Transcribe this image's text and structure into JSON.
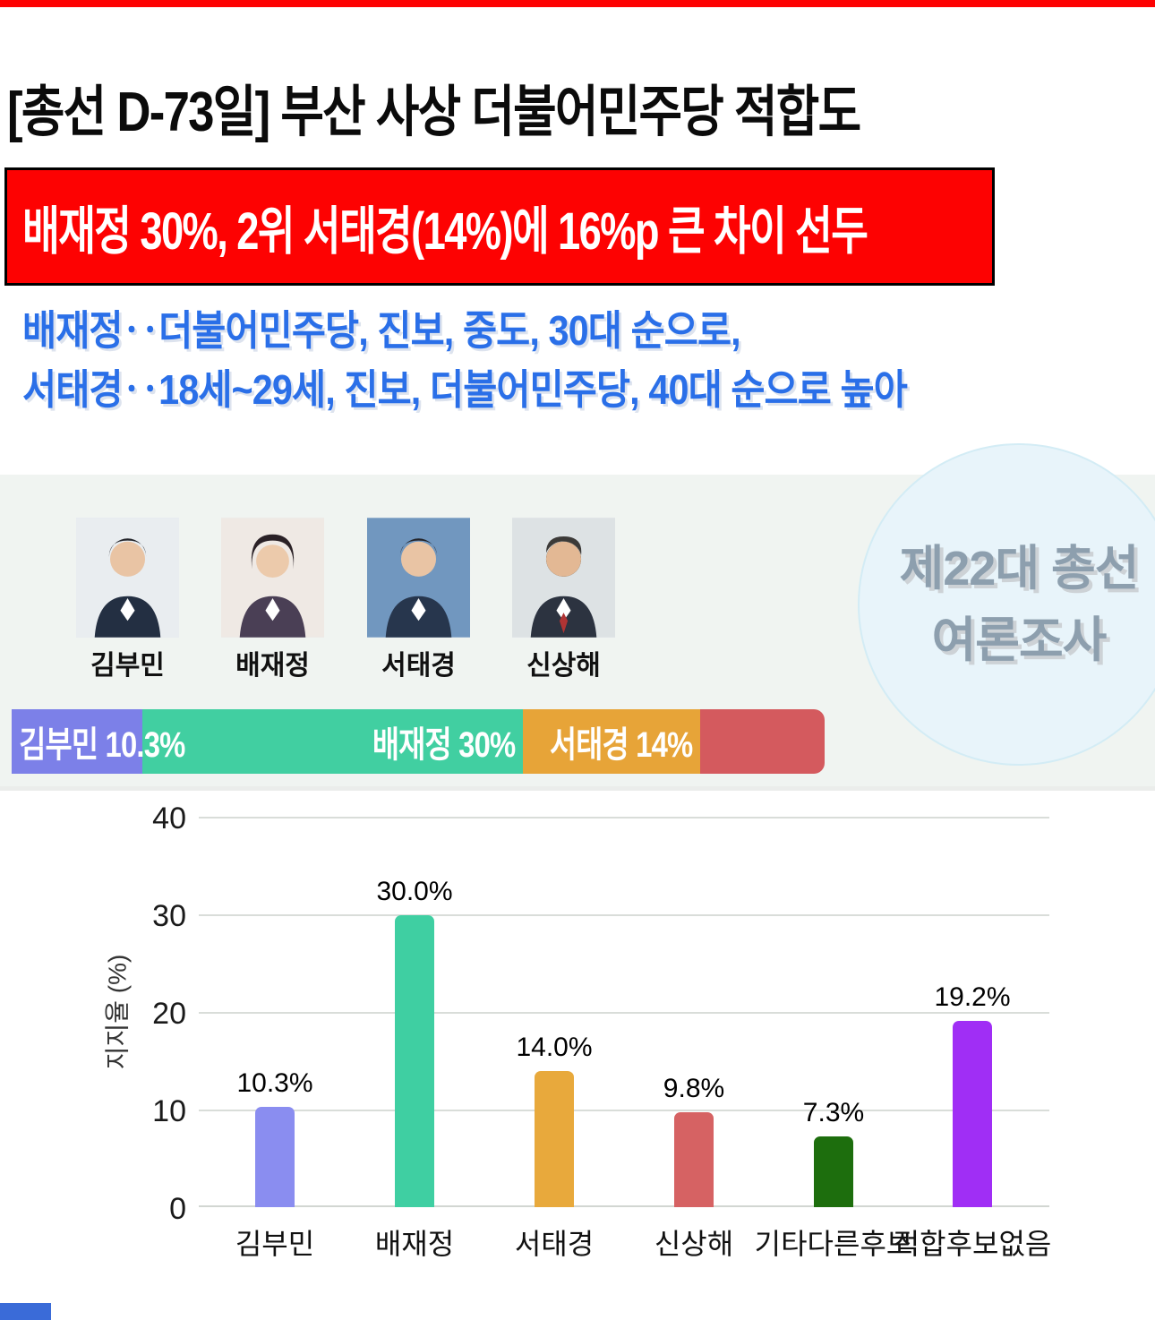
{
  "header": {
    "headline": "[총선 D-73일] 부산 사상 더불어민주당 적합도",
    "banner_text": "배재정 30%, 2위 서태경(14%)에 16%p 큰 차이 선두",
    "subtitle_lines": [
      "배재정‥더불어민주당, 진보, 중도, 30대 순으로,",
      "서태경‥18세~29세, 진보, 더불어민주당, 40대 순으로 높아"
    ]
  },
  "candidates_row": {
    "names": [
      "김부민",
      "배재정",
      "서태경",
      "신상해"
    ]
  },
  "poll_badge": {
    "line1": "제22대 총선",
    "line2": "여론조사"
  },
  "stacked_bar": {
    "segments": [
      {
        "label": "김부민 10.3%",
        "value": 10.3,
        "color": "#7c80e8"
      },
      {
        "label": "배재정 30%",
        "value": 30.0,
        "color": "#41cfa1"
      },
      {
        "label": "서태경 14%",
        "value": 14.0,
        "color": "#e7a438"
      },
      {
        "label": "",
        "value": 9.8,
        "color": "#d45a5e"
      }
    ]
  },
  "chart_data": {
    "type": "bar",
    "categories": [
      "김부민",
      "배재정",
      "서태경",
      "신상해",
      "기타다른후보",
      "적합후보없음"
    ],
    "values": [
      10.3,
      30.0,
      14.0,
      9.8,
      7.3,
      19.2
    ],
    "labels": [
      "10.3%",
      "30.0%",
      "14.0%",
      "9.8%",
      "7.3%",
      "19.2%"
    ],
    "colors": [
      "#8a8df0",
      "#3fcfa2",
      "#e8a93c",
      "#d66263",
      "#1d6e0d",
      "#a02ef5"
    ],
    "title": "",
    "xlabel": "",
    "ylabel": "지지율 (%)",
    "yticks": [
      40,
      30,
      20,
      10,
      0
    ],
    "ylim": [
      0,
      40
    ],
    "grid": true,
    "legend": "none"
  },
  "accent_colors": {
    "top_strip": "#fd0202",
    "banner_bg": "#fd0202",
    "subtitle_blue": "#2a6fe8"
  }
}
